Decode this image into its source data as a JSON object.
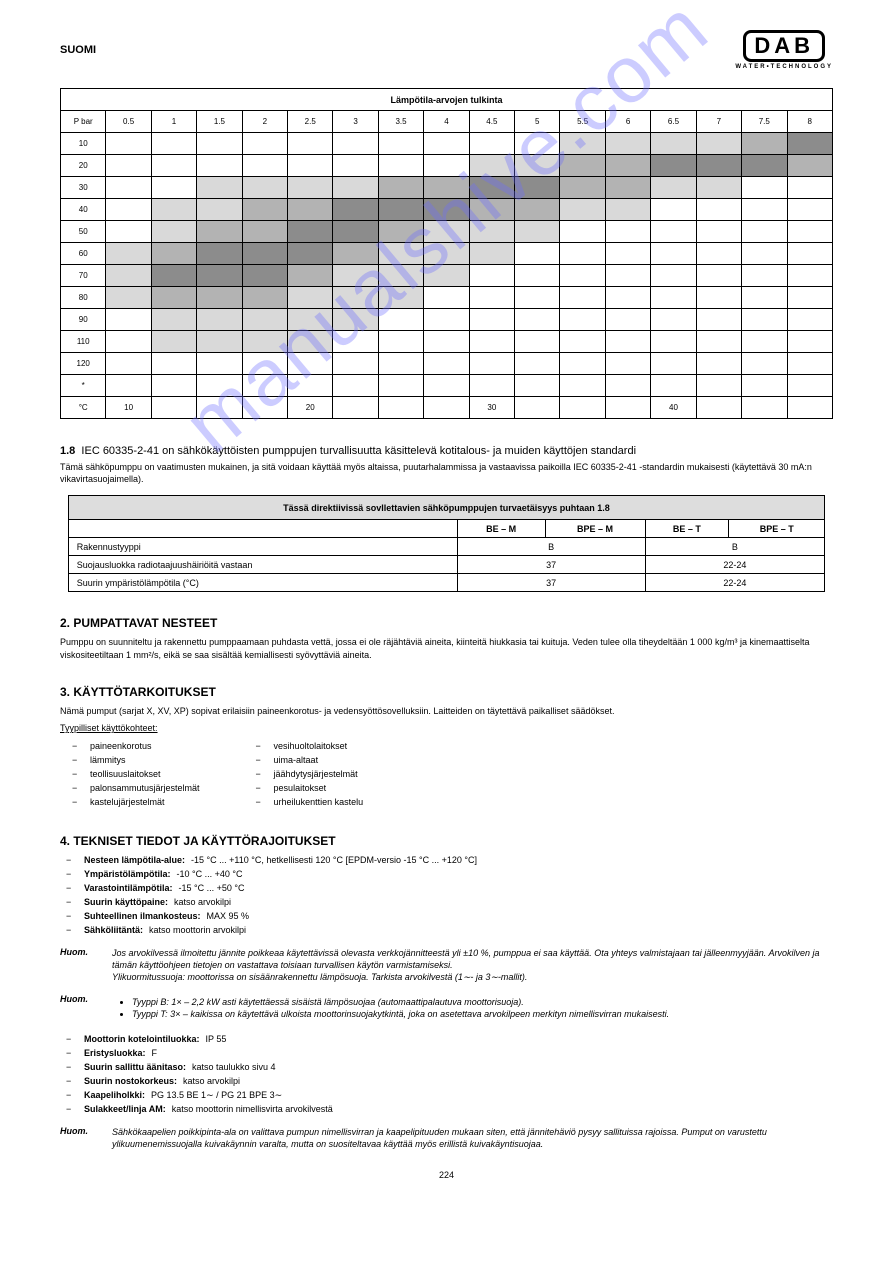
{
  "lang_header": "SUOMI",
  "logo": {
    "brand": "DAB",
    "tagline": "WATER•TECHNOLOGY"
  },
  "watermark": "manualshive.com",
  "page_number": "224",
  "heat": {
    "title": "Lämpötila-arvojen tulkinta",
    "row_left_label": "P bar",
    "col_labels": [
      "0.5",
      "1",
      "1.5",
      "2",
      "2.5",
      "3",
      "3.5",
      "4",
      "4.5",
      "5",
      "5.5",
      "6",
      "6.5",
      "7",
      "7.5",
      "8"
    ],
    "t_label_top": "°C",
    "rows": [
      {
        "label": "10",
        "cells": [
          "w",
          "w",
          "w",
          "w",
          "w",
          "w",
          "w",
          "w",
          "w",
          "w",
          "l",
          "l",
          "l",
          "l",
          "m",
          "d"
        ]
      },
      {
        "label": "20",
        "cells": [
          "w",
          "w",
          "w",
          "w",
          "w",
          "w",
          "w",
          "w",
          "l",
          "l",
          "m",
          "m",
          "d",
          "d",
          "d",
          "m"
        ]
      },
      {
        "label": "30",
        "cells": [
          "w",
          "w",
          "l",
          "l",
          "l",
          "l",
          "m",
          "m",
          "d",
          "d",
          "m",
          "m",
          "l",
          "l",
          "w",
          "w"
        ]
      },
      {
        "label": "40",
        "cells": [
          "w",
          "l",
          "l",
          "m",
          "m",
          "d",
          "d",
          "d",
          "m",
          "m",
          "l",
          "l",
          "w",
          "w",
          "w",
          "w"
        ]
      },
      {
        "label": "50",
        "cells": [
          "w",
          "l",
          "m",
          "m",
          "d",
          "d",
          "m",
          "l",
          "l",
          "l",
          "w",
          "w",
          "w",
          "w",
          "w",
          "w"
        ]
      },
      {
        "label": "60",
        "cells": [
          "l",
          "m",
          "d",
          "d",
          "d",
          "m",
          "l",
          "l",
          "l",
          "w",
          "w",
          "w",
          "w",
          "w",
          "w",
          "w"
        ]
      },
      {
        "label": "70",
        "cells": [
          "l",
          "d",
          "d",
          "d",
          "m",
          "l",
          "l",
          "l",
          "w",
          "w",
          "w",
          "w",
          "w",
          "w",
          "w",
          "w"
        ]
      },
      {
        "label": "80",
        "cells": [
          "l",
          "m",
          "m",
          "m",
          "l",
          "l",
          "l",
          "w",
          "w",
          "w",
          "w",
          "w",
          "w",
          "w",
          "w",
          "w"
        ]
      },
      {
        "label": "90",
        "cells": [
          "w",
          "l",
          "l",
          "l",
          "l",
          "l",
          "w",
          "w",
          "w",
          "w",
          "w",
          "w",
          "w",
          "w",
          "w",
          "w"
        ]
      },
      {
        "label": "110",
        "cells": [
          "w",
          "l",
          "l",
          "l",
          "l",
          "w",
          "w",
          "w",
          "w",
          "w",
          "w",
          "w",
          "w",
          "w",
          "w",
          "w"
        ]
      },
      {
        "label": "120",
        "cells": [
          "w",
          "w",
          "w",
          "w",
          "w",
          "w",
          "w",
          "w",
          "w",
          "w",
          "w",
          "w",
          "w",
          "w",
          "w",
          "w"
        ]
      },
      {
        "label": "*",
        "cells": [
          "",
          "",
          "",
          "",
          "",
          "",
          "",
          "",
          "",
          "",
          "",
          "",
          "",
          "",
          "",
          ""
        ]
      }
    ],
    "legend_row": [
      "°C",
      "10",
      "",
      "",
      "",
      "20",
      "",
      "",
      "",
      "30",
      "",
      "",
      "",
      "40",
      "",
      "",
      ""
    ],
    "colors": {
      "w": "#ffffff",
      "l": "#d9d9d9",
      "m": "#b3b3b3",
      "d": "#8c8c8c"
    }
  },
  "sec_1_8": {
    "num": "1.8",
    "title": "IEC 60335-2-41 on sähkökäyttöisten pumppujen turvallisuutta käsittelevä kotitalous- ja muiden käyttöjen standardi",
    "body": "Tämä sähköpumppu on vaatimusten mukainen, ja sitä voidaan käyttää myös altaissa, puutarhalammissa ja vastaavissa paikoilla IEC 60335-2-41 -standardin mukaisesti (käytettävä 30 mA:n vikavirtasuojaimella)."
  },
  "model_table": {
    "header": "Tässä direktiivissä sovllettavien sähköpumppujen turvaetäisyys puhtaan 1.8",
    "models": [
      "BE – M",
      "BPE – M",
      "BE – T",
      "BPE – T"
    ],
    "rows": [
      {
        "label": "Rakennustyyppi",
        "v": [
          "B",
          "B"
        ]
      },
      {
        "label": "Suojausluokka radiotaajuushäiriöitä vastaan",
        "v": [
          "37",
          "22-24"
        ]
      },
      {
        "label": "Suurin ympäristölämpötila (°C)",
        "v": [
          "37",
          "22-24"
        ]
      }
    ]
  },
  "s2": {
    "h": "2. PUMPATTAVAT NESTEET",
    "p": "Pumppu on suunniteltu ja rakennettu pumppaamaan puhdasta vettä, jossa ei ole räjähtäviä aineita, kiinteitä hiukkasia tai kuituja. Veden tulee olla tiheydeltään 1 000 kg/m³ ja kinemaattiselta viskositeetiltaan 1 mm²/s, eikä se saa sisältää kemiallisesti syövyttäviä aineita."
  },
  "s3": {
    "h": "3. KÄYTTÖTARKOITUKSET",
    "lead": "Nämä pumput (sarjat X, XV, XP) sopivat erilaisiin paineenkorotus- ja vedensyöttösovelluksiin. Laitteiden on täytettävä paikalliset säädökset.",
    "apps_title": "Tyypilliset käyttökohteet:",
    "cols": [
      [
        "paineenkorotus",
        "lämmitys",
        "teollisuuslaitokset",
        "palonsammutusjärjestelmät",
        "kastelujärjestelmät"
      ],
      [
        "vesihuoltolaitokset",
        "uima-altaat",
        "jäähdytysjärjestelmät",
        "pesulaitokset",
        "urheilukenttien kastelu"
      ]
    ]
  },
  "s4": {
    "h": "4. TEKNISET TIEDOT JA KÄYTTÖRAJOITUKSET",
    "rows": [
      [
        "Nesteen lämpötila-alue:",
        "-15 °C ... +110 °C, hetkellisesti 120 °C [EPDM-versio -15 °C ... +120 °C]"
      ],
      [
        "Ympäristölämpötila:",
        "-10 °C ... +40 °C"
      ],
      [
        "Varastointilämpötila:",
        "-15 °C ... +50 °C"
      ],
      [
        "Suurin käyttöpaine:",
        "katso arvokilpi"
      ],
      [
        "Suhteellinen ilmankosteus:",
        "MAX 95 %"
      ],
      [
        "Sähköliitäntä:",
        "katso moottorin arvokilpi"
      ]
    ],
    "note1": {
      "label": "Huom.",
      "text": "Jos arvokilvessä ilmoitettu jännite poikkeaa käytettävissä olevasta verkkojännitteestä yli ±10 %, pumppua ei saa käyttää. Ota yhteys valmistajaan tai jälleenmyyjään. Arvokilven ja tämän käyttöohjeen tietojen on vastattava toisiaan turvallisen käytön varmistamiseksi.",
      "sub": "Ylikuormitussuoja: moottorissa on sisäänrakennettu lämpösuoja. Tarkista arvokilvestä (1∼- ja 3∼-mallit)."
    },
    "note2": {
      "label": "Huom.",
      "bullets": [
        "Tyyppi B: 1× – 2,2 kW asti käytettäessä sisäistä lämpösuojaa (automaattipalautuva moottorisuoja).",
        "Tyyppi T: 3× – kaikissa on käytettävä ulkoista moottorinsuojakytkintä, joka on asetettava arvokilpeen merkityn nimellisvirran mukaisesti."
      ]
    },
    "rows_b": [
      [
        "Moottorin kotelointiluokka:",
        "IP 55"
      ],
      [
        "Eristysluokka:",
        "F"
      ],
      [
        "Suurin sallittu äänitaso:",
        "katso taulukko sivu 4"
      ],
      [
        "Suurin nostokorkeus:",
        "katso arvokilpi"
      ],
      [
        "Kaapeliholkki:",
        "PG 13.5 BE 1∼ / PG 21 BPE 3∼"
      ],
      [
        "Sulakkeet/linja AM:",
        "katso moottorin nimellisvirta arvokilvestä"
      ]
    ],
    "note3": {
      "label": "Huom.",
      "text": "Sähkökaapelien poikkipinta-ala on valittava pumpun nimellisvirran ja kaapelipituuden mukaan siten, että jännitehäviö pysyy sallituissa rajoissa. Pumput on varustettu ylikuumenemissuojalla kuivakäynnin varalta, mutta on suositeltavaa käyttää myös erillistä kuivakäyntisuojaa."
    }
  }
}
